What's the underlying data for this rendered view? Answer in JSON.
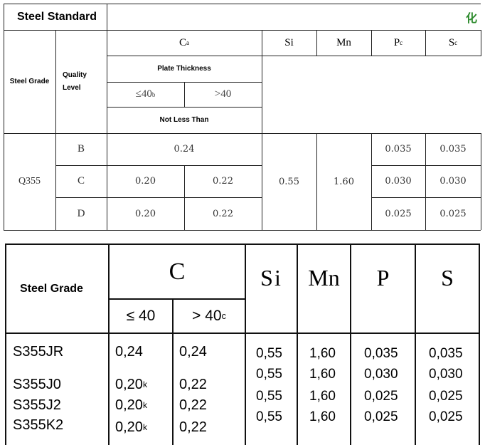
{
  "top_table": {
    "title": "Steel Standard",
    "clipped_heading": "化",
    "headers": {
      "steel_grade": "Steel Grade",
      "quality_level": "Quality Level",
      "c": "C",
      "c_sup": "a",
      "si": "Si",
      "mn": "Mn",
      "p": "P",
      "p_sup": "c",
      "s": "S",
      "s_sup": "c",
      "plate_thickness": "Plate Thickness",
      "le40": "≤40",
      "le40_sup": "b",
      "gt40": ">40",
      "not_less_than": "Not Less Than"
    },
    "grade": "Q355",
    "si": "0.55",
    "mn": "1.60",
    "rows": [
      {
        "level": "B",
        "c_merged": "0.24",
        "p": "0.035",
        "s": "0.035"
      },
      {
        "level": "C",
        "c_le40": "0.20",
        "c_gt40": "0.22",
        "p": "0.030",
        "s": "0.030"
      },
      {
        "level": "D",
        "c_le40": "0.20",
        "c_gt40": "0.22",
        "p": "0.025",
        "s": "0.025"
      }
    ]
  },
  "bottom_table": {
    "headers": {
      "steel_grade": "Steel Grade",
      "c": "C",
      "si": "Si",
      "mn": "Mn",
      "p": "P",
      "s": "S",
      "le40": "≤ 40",
      "gt40": "> 40",
      "gt40_sup": "c"
    },
    "rows": [
      {
        "grade": "S355JR",
        "c_le40": "0,24",
        "c_le40_sup": "",
        "c_gt40": "0,24",
        "si": "0,55",
        "mn": "1,60",
        "p": "0,035",
        "s": "0,035"
      },
      {
        "grade": "S355J0",
        "c_le40": "0,20",
        "c_le40_sup": "k",
        "c_gt40": "0,22",
        "si": "0,55",
        "mn": "1,60",
        "p": "0,030",
        "s": "0,030"
      },
      {
        "grade": "S355J2",
        "c_le40": "0,20",
        "c_le40_sup": "k",
        "c_gt40": "0,22",
        "si": "0,55",
        "mn": "1,60",
        "p": "0,025",
        "s": "0,025"
      },
      {
        "grade": "S355K2",
        "c_le40": "0,20",
        "c_le40_sup": "k",
        "c_gt40": "0,22",
        "si": "0,55",
        "mn": "1,60",
        "p": "0,025",
        "s": "0,025"
      }
    ]
  }
}
